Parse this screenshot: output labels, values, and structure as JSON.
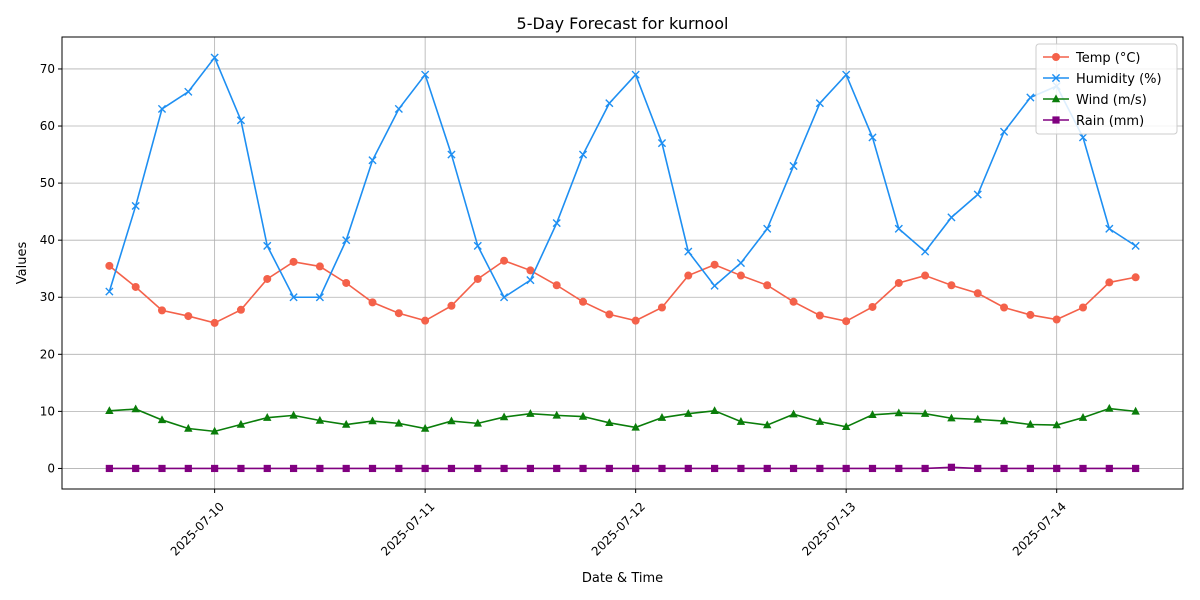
{
  "chart_data": {
    "type": "line",
    "title": "5-Day Forecast for kurnool",
    "xlabel": "Date & Time",
    "ylabel": "Values",
    "x_ticks": [
      "2025-07-10",
      "2025-07-11",
      "2025-07-12",
      "2025-07-13",
      "2025-07-14"
    ],
    "x_tick_positions_hours": [
      0,
      24,
      48,
      72,
      96
    ],
    "x_hours_relative_to_first_tick": [
      -12,
      -9,
      -6,
      -3,
      0,
      3,
      6,
      9,
      12,
      15,
      18,
      21,
      24,
      27,
      30,
      33,
      36,
      39,
      42,
      45,
      48,
      51,
      54,
      57,
      60,
      63,
      66,
      69,
      72,
      75,
      78,
      81,
      84,
      87,
      90,
      93,
      96,
      99,
      102,
      105
    ],
    "ylim": [
      -3.6,
      75.6
    ],
    "y_ticks": [
      0,
      10,
      20,
      30,
      40,
      50,
      60,
      70
    ],
    "grid": true,
    "legend_position": "top-right",
    "series": [
      {
        "name": "Temp (°C)",
        "color": "#f4614a",
        "marker": "circle",
        "values": [
          35.5,
          31.8,
          27.7,
          26.7,
          25.5,
          27.8,
          33.2,
          36.2,
          35.4,
          32.5,
          29.1,
          27.2,
          25.9,
          28.5,
          33.2,
          36.4,
          34.7,
          32.1,
          29.2,
          27.0,
          25.9,
          28.2,
          33.8,
          35.7,
          33.8,
          32.1,
          29.2,
          26.8,
          25.8,
          28.3,
          32.5,
          33.8,
          32.1,
          30.7,
          28.2,
          26.9,
          26.1,
          28.2,
          32.6,
          33.5
        ]
      },
      {
        "name": "Humidity (%)",
        "color": "#1e8ff2",
        "marker": "x",
        "values": [
          31,
          46,
          63,
          66,
          72,
          61,
          39,
          30,
          30,
          40,
          54,
          63,
          69,
          55,
          39,
          30,
          33,
          43,
          55,
          64,
          69,
          57,
          38,
          32,
          36,
          42,
          53,
          64,
          69,
          58,
          42,
          38,
          44,
          48,
          59,
          65,
          67,
          58,
          42,
          39
        ]
      },
      {
        "name": "Wind (m/s)",
        "color": "#0a7d0a",
        "marker": "triangle",
        "values": [
          10.1,
          10.4,
          8.5,
          7.0,
          6.5,
          7.7,
          8.9,
          9.3,
          8.4,
          7.7,
          8.3,
          7.9,
          7.0,
          8.3,
          7.9,
          9.0,
          9.6,
          9.3,
          9.1,
          8.0,
          7.2,
          8.9,
          9.6,
          10.1,
          8.2,
          7.6,
          9.5,
          8.2,
          7.3,
          9.4,
          9.7,
          9.6,
          8.8,
          8.6,
          8.3,
          7.7,
          7.6,
          8.9,
          10.5,
          10.0
        ]
      },
      {
        "name": "Rain (mm)",
        "color": "#800080",
        "marker": "square",
        "values": [
          0,
          0,
          0,
          0,
          0,
          0,
          0,
          0,
          0,
          0,
          0,
          0,
          0,
          0,
          0,
          0,
          0,
          0,
          0,
          0,
          0,
          0,
          0,
          0,
          0,
          0,
          0,
          0,
          0,
          0,
          0,
          0,
          0.2,
          0,
          0,
          0,
          0,
          0,
          0,
          0
        ]
      }
    ]
  }
}
